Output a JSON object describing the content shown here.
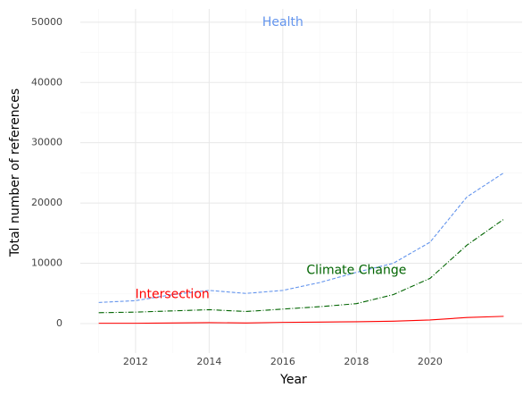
{
  "chart_data": {
    "type": "line",
    "x_label": "Year",
    "y_label": "Total number of references",
    "x": [
      2011,
      2012,
      2013,
      2014,
      2015,
      2016,
      2017,
      2018,
      2019,
      2020,
      2021,
      2022
    ],
    "series": [
      {
        "name": "Health",
        "color": "#6495ed",
        "dash": "4,2",
        "values": [
          3500,
          3800,
          4800,
          5500,
          5000,
          5500,
          6800,
          8500,
          10000,
          13500,
          21000,
          25000
        ]
      },
      {
        "name": "Climate Change",
        "color": "#006400",
        "dash": "6,2,1,2",
        "values": [
          1800,
          1900,
          2100,
          2300,
          2000,
          2400,
          2800,
          3300,
          4800,
          7500,
          13000,
          17300
        ]
      },
      {
        "name": "Intersection",
        "color": "#ff0000",
        "dash": "none",
        "values": [
          50,
          50,
          100,
          150,
          100,
          200,
          250,
          300,
          400,
          600,
          1000,
          1200
        ]
      }
    ],
    "xlim": [
      2010.5,
      2022.5
    ],
    "xticks": [
      2012,
      2014,
      2016,
      2018,
      2020
    ],
    "ylim": [
      -4900,
      52200
    ],
    "yticks": [
      0,
      10000,
      20000,
      30000,
      40000,
      50000
    ],
    "grid": true
  }
}
